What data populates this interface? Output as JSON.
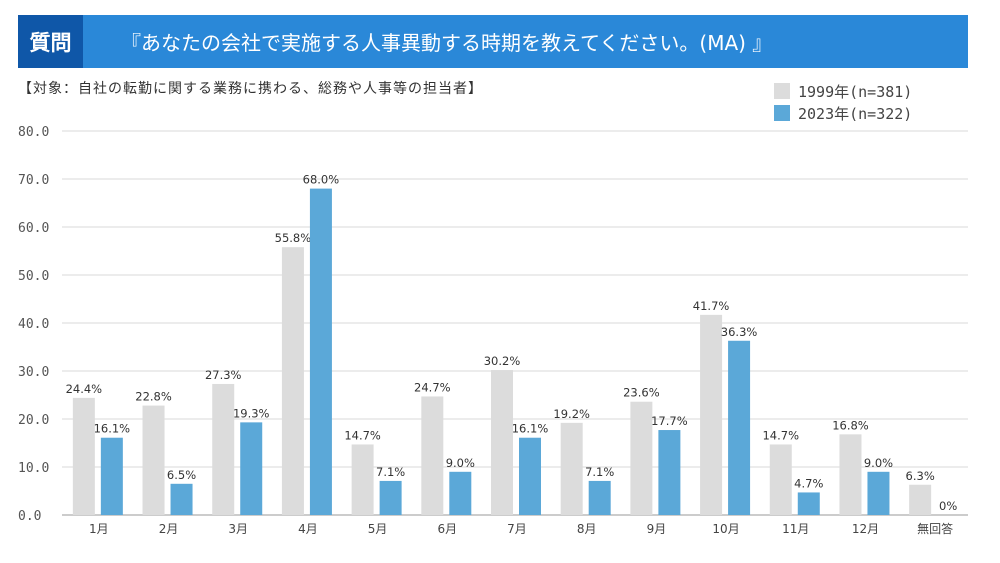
{
  "header": {
    "badge": "質問",
    "title": "『あなたの会社で実施する人事異動する時期を教えてください。(MA) 』"
  },
  "subtitle": "【対象：自社の転勤に関する業務に携わる、総務や人事等の担当者】",
  "colors": {
    "s1999": "#dcdcdc",
    "s2023": "#5ba8d8",
    "grid": "#d9d9d9"
  },
  "chart_data": {
    "type": "bar",
    "categories": [
      "1月",
      "2月",
      "3月",
      "4月",
      "5月",
      "6月",
      "7月",
      "8月",
      "9月",
      "10月",
      "11月",
      "12月",
      "無回答"
    ],
    "series": [
      {
        "name": "1999年(n=381)",
        "values": [
          24.4,
          22.8,
          27.3,
          55.8,
          14.7,
          24.7,
          30.2,
          19.2,
          23.6,
          41.7,
          14.7,
          16.8,
          6.3
        ],
        "labels": [
          "24.4%",
          "22.8%",
          "27.3%",
          "55.8%",
          "14.7%",
          "24.7%",
          "30.2%",
          "19.2%",
          "23.6%",
          "41.7%",
          "14.7%",
          "16.8%",
          "6.3%"
        ]
      },
      {
        "name": "2023年(n=322)",
        "values": [
          16.1,
          6.5,
          19.3,
          68.0,
          7.1,
          9.0,
          16.1,
          7.1,
          17.7,
          36.3,
          4.7,
          9.0,
          0
        ],
        "labels": [
          "16.1%",
          "6.5%",
          "19.3%",
          "68.0%",
          "7.1%",
          "9.0%",
          "16.1%",
          "7.1%",
          "17.7%",
          "36.3%",
          "4.7%",
          "9.0%",
          "0%"
        ]
      }
    ],
    "yticks": [
      "0.0",
      "10.0",
      "20.0",
      "30.0",
      "40.0",
      "50.0",
      "60.0",
      "70.0",
      "80.0"
    ],
    "ylim": [
      0,
      80
    ],
    "legend": "top-right",
    "grid": true
  }
}
